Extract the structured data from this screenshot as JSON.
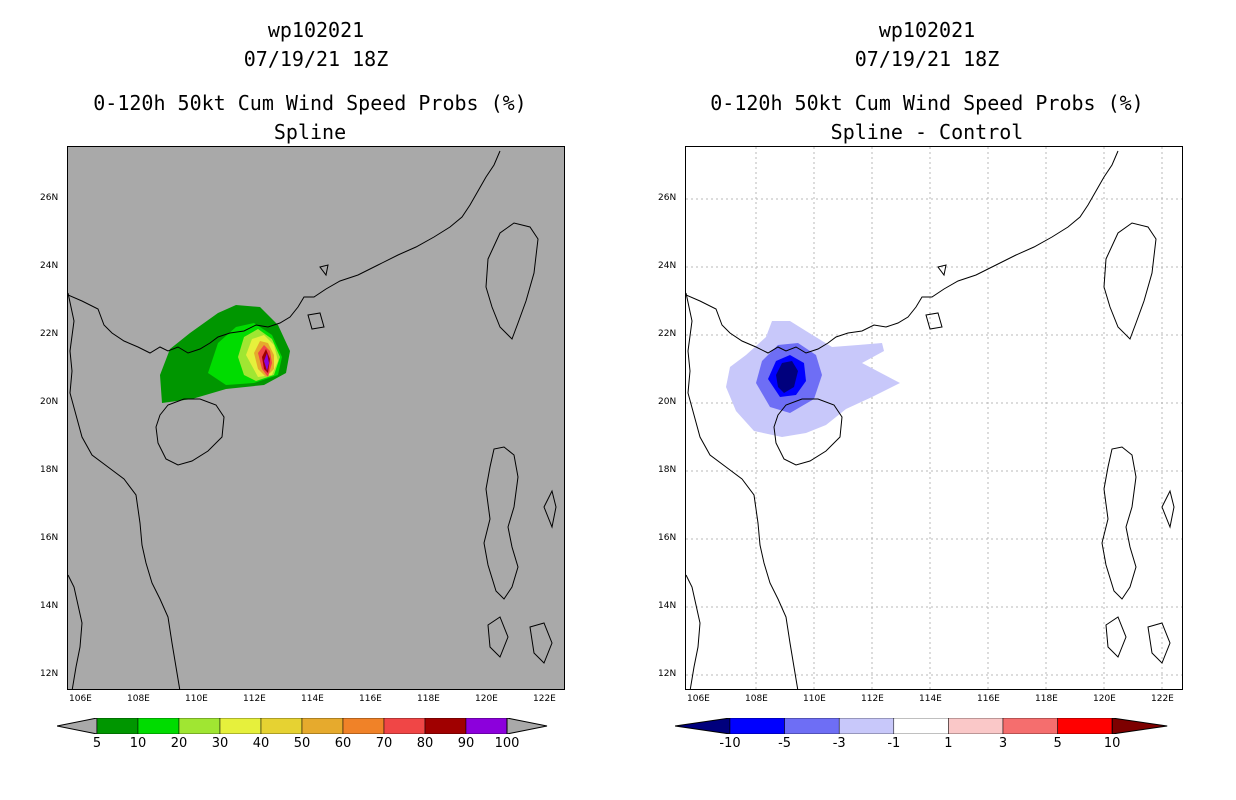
{
  "left": {
    "storm_id": "wp102021",
    "datetime": "07/19/21 18Z",
    "product": "0-120h 50kt Cum Wind Speed Probs (%)",
    "subtitle": "Spline",
    "lat_labels": [
      "26N",
      "24N",
      "22N",
      "20N",
      "18N",
      "16N",
      "14N",
      "12N"
    ],
    "lon_labels": [
      "106E",
      "108E",
      "110E",
      "112E",
      "114E",
      "116E",
      "118E",
      "120E",
      "122E"
    ],
    "colorbar": {
      "labels": [
        "5",
        "10",
        "20",
        "30",
        "40",
        "50",
        "60",
        "70",
        "80",
        "90",
        "100"
      ],
      "colors": [
        "#009600",
        "#00dc00",
        "#a0e632",
        "#e6f03c",
        "#e6d232",
        "#e6aa2d",
        "#f08228",
        "#f04646",
        "#a00000",
        "#8c00dc"
      ]
    }
  },
  "right": {
    "storm_id": "wp102021",
    "datetime": "07/19/21 18Z",
    "product": "0-120h 50kt Cum Wind Speed Probs (%)",
    "subtitle": "Spline - Control",
    "lat_labels": [
      "26N",
      "24N",
      "22N",
      "20N",
      "18N",
      "16N",
      "14N",
      "12N"
    ],
    "lon_labels": [
      "106E",
      "108E",
      "110E",
      "112E",
      "114E",
      "116E",
      "118E",
      "120E",
      "122E"
    ],
    "colorbar": {
      "labels": [
        "-10",
        "-5",
        "-3",
        "-1",
        "1",
        "3",
        "5",
        "10"
      ],
      "colors": [
        "#00007d",
        "#0000ff",
        "#6e6ef5",
        "#c8c8fa",
        "#ffffff",
        "#fac8c8",
        "#f56e6e",
        "#ff0000",
        "#7d0000"
      ]
    }
  },
  "map_background_left": "#a9a9a9",
  "map_background_right": "#ffffff"
}
